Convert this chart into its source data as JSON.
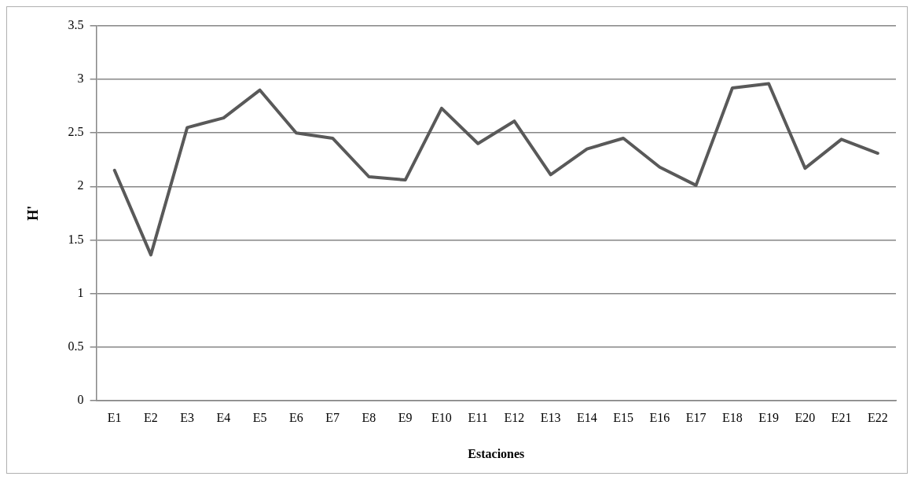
{
  "chart_data": {
    "type": "line",
    "xlabel": "Estaciones",
    "ylabel": "H'",
    "categories": [
      "E1",
      "E2",
      "E3",
      "E4",
      "E5",
      "E6",
      "E7",
      "E8",
      "E9",
      "E10",
      "E11",
      "E12",
      "E13",
      "E14",
      "E15",
      "E16",
      "E17",
      "E18",
      "E19",
      "E20",
      "E21",
      "E22"
    ],
    "series": [
      {
        "color": "#595959",
        "values": [
          2.15,
          1.36,
          2.55,
          2.64,
          2.9,
          2.5,
          2.45,
          2.09,
          2.06,
          2.73,
          2.4,
          2.61,
          2.11,
          2.35,
          2.45,
          2.18,
          2.01,
          2.92,
          2.96,
          2.17,
          2.44,
          2.31
        ]
      }
    ],
    "ylim": [
      0,
      3.5
    ],
    "yticks": [
      0,
      0.5,
      1,
      1.5,
      2,
      2.5,
      3,
      3.5
    ],
    "grid": "y",
    "legend": false,
    "marker": "none",
    "line_style": "solid"
  }
}
